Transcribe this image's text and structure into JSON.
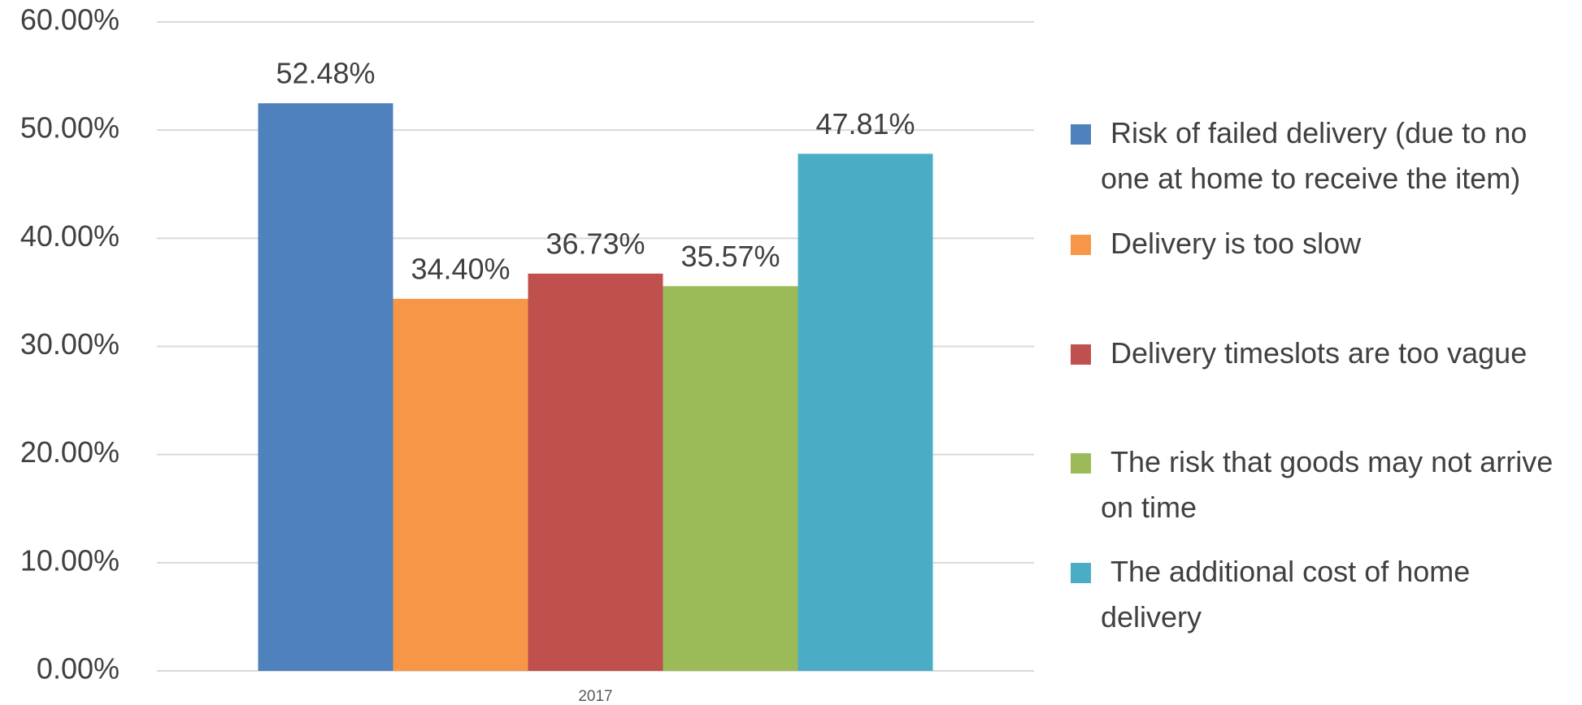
{
  "chart_data": {
    "type": "bar",
    "categories": [
      "2017"
    ],
    "series": [
      {
        "name": "Risk of failed delivery (due to no one at home to receive the item)",
        "color": "#4f81bd",
        "values": [
          52.48
        ],
        "value_labels": [
          "52.48%"
        ]
      },
      {
        "name": "Delivery is too slow",
        "color": "#f79646",
        "values": [
          34.4
        ],
        "value_labels": [
          "34.40%"
        ]
      },
      {
        "name": "Delivery timeslots are too vague",
        "color": "#c0504d",
        "values": [
          36.73
        ],
        "value_labels": [
          "36.73%"
        ]
      },
      {
        "name": "The risk that goods may not arrive on time",
        "color": "#9bbb59",
        "values": [
          35.57
        ],
        "value_labels": [
          "35.57%"
        ]
      },
      {
        "name": "The additional cost of home delivery",
        "color": "#4bacc6",
        "values": [
          47.81
        ],
        "value_labels": [
          "47.81%"
        ]
      }
    ],
    "ylim": [
      0,
      60
    ],
    "yticks": [
      {
        "value": 0,
        "label": "0.00%"
      },
      {
        "value": 10,
        "label": "10.00%"
      },
      {
        "value": 20,
        "label": "20.00%"
      },
      {
        "value": 30,
        "label": "30.00%"
      },
      {
        "value": 40,
        "label": "40.00%"
      },
      {
        "value": 50,
        "label": "50.00%"
      },
      {
        "value": 60,
        "label": "60.00%"
      }
    ],
    "grid": true,
    "legend": "right"
  }
}
